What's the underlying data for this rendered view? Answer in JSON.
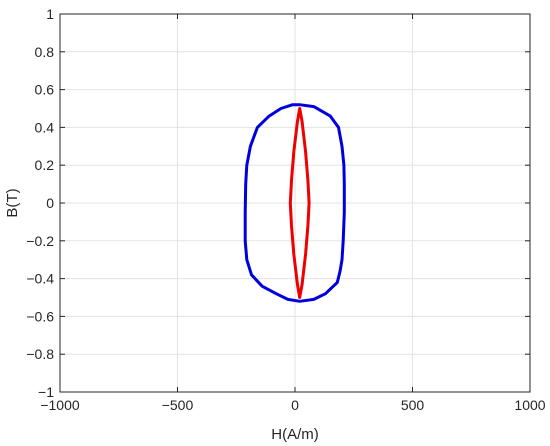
{
  "chart_data": {
    "type": "line",
    "title": "",
    "xlabel": "H(A/m)",
    "ylabel": "B(T)",
    "xlim": [
      -1000,
      1000
    ],
    "ylim": [
      -1,
      1
    ],
    "xticks": [
      -1000,
      -500,
      0,
      500,
      1000
    ],
    "yticks": [
      -1,
      -0.8,
      -0.6,
      -0.4,
      -0.2,
      0,
      0.2,
      0.4,
      0.6,
      0.8,
      1
    ],
    "xtick_labels": [
      "−1000",
      "−500",
      "0",
      "500",
      "1000"
    ],
    "ytick_labels": [
      "−1",
      "−0.8",
      "−0.6",
      "−0.4",
      "−0.2",
      "0",
      "0.2",
      "0.4",
      "0.6",
      "0.8",
      "1"
    ],
    "grid": true,
    "legend": "none",
    "series": [
      {
        "color": "#0000dd",
        "x": [
          20,
          80,
          150,
          185,
          200,
          208,
          210,
          210,
          205,
          200,
          192,
          180,
          130,
          80,
          20,
          -30,
          -80,
          -140,
          -185,
          -205,
          -212,
          -212,
          -210,
          -205,
          -190,
          -160,
          -110,
          -60,
          -10,
          20
        ],
        "y": [
          0.52,
          0.51,
          0.46,
          0.4,
          0.3,
          0.2,
          0.1,
          -0.05,
          -0.2,
          -0.3,
          -0.36,
          -0.42,
          -0.48,
          -0.51,
          -0.52,
          -0.51,
          -0.48,
          -0.44,
          -0.38,
          -0.3,
          -0.2,
          -0.05,
          0.1,
          0.2,
          0.3,
          0.4,
          0.46,
          0.5,
          0.52,
          0.52
        ]
      },
      {
        "color": "#ee0000",
        "x": [
          20,
          30,
          45,
          55,
          60,
          55,
          45,
          30,
          20,
          10,
          -5,
          -15,
          -20,
          -15,
          -5,
          10,
          20
        ],
        "y": [
          0.5,
          0.43,
          0.27,
          0.12,
          0.0,
          -0.12,
          -0.27,
          -0.43,
          -0.5,
          -0.43,
          -0.27,
          -0.12,
          0.0,
          0.12,
          0.27,
          0.43,
          0.5
        ]
      }
    ]
  }
}
